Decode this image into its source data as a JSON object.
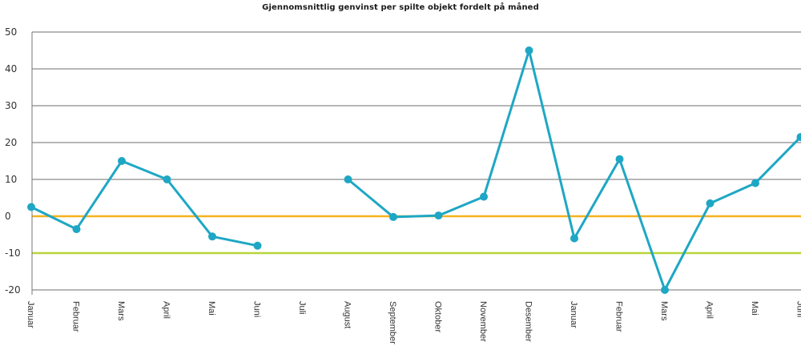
{
  "chart_data": {
    "type": "line",
    "title": "Gjennomsnittlig genvinst per spilte objekt fordelt på måned",
    "xlabel": "",
    "ylabel": "",
    "ylim": [
      -20,
      50
    ],
    "yticks": [
      50,
      40,
      30,
      20,
      10,
      0,
      -10,
      -20
    ],
    "grid": true,
    "legend": "none",
    "categories": [
      "Januar",
      "Februar",
      "Mars",
      "April",
      "Mai",
      "Juni",
      "Juli",
      "August",
      "September",
      "Oktober",
      "November",
      "Desember",
      "Januar",
      "Februar",
      "Mars",
      "April",
      "Mai",
      "Juni"
    ],
    "series": [
      {
        "values": [
          2.5,
          -3.5,
          15,
          10,
          -5.5,
          -8,
          null,
          10,
          -0.2,
          0.2,
          5.3,
          45,
          -6,
          15.5,
          -20,
          3.5,
          9,
          21.5
        ]
      }
    ],
    "reference_lines": [
      {
        "value": 0,
        "color": "#f5b21e"
      },
      {
        "value": -10,
        "color": "#b8d43a"
      }
    ],
    "colors": {
      "series": "#1ea7c4",
      "grid": "#8a8a8a",
      "axis": "#777777"
    }
  }
}
